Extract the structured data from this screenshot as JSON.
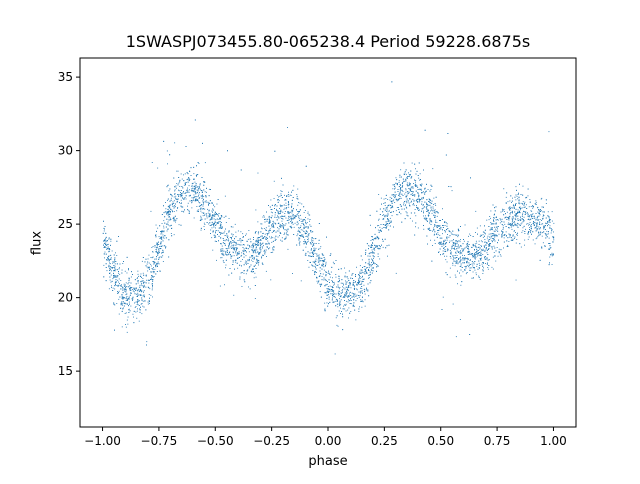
{
  "chart_data": {
    "type": "scatter",
    "title": "1SWASPJ073455.80-065238.4 Period 59228.6875s",
    "xlabel": "phase",
    "ylabel": "flux",
    "xlim": [
      -1.1,
      1.1
    ],
    "ylim": [
      11.2,
      36.3
    ],
    "xticks": [
      -1.0,
      -0.75,
      -0.5,
      -0.25,
      0.0,
      0.25,
      0.5,
      0.75,
      1.0
    ],
    "xtick_labels": [
      "−1.00",
      "−0.75",
      "−0.50",
      "−0.25",
      "0.00",
      "0.25",
      "0.50",
      "0.75",
      "1.00"
    ],
    "yticks": [
      15,
      20,
      25,
      30,
      35
    ],
    "ytick_labels": [
      "15",
      "20",
      "25",
      "30",
      "35"
    ],
    "grid": false,
    "legend": "none",
    "marker_color": "#1f77b4",
    "series": [
      {
        "phase_profile": {
          "x": [
            -1.0,
            -0.95,
            -0.9,
            -0.85,
            -0.8,
            -0.75,
            -0.7,
            -0.65,
            -0.6,
            -0.55,
            -0.5,
            -0.45,
            -0.4,
            -0.35,
            -0.3,
            -0.25,
            -0.2,
            -0.15,
            -0.1,
            -0.05,
            0.0,
            0.05,
            0.1,
            0.15,
            0.2,
            0.25,
            0.3,
            0.35,
            0.4,
            0.45,
            0.5,
            0.55,
            0.6,
            0.65,
            0.7,
            0.75,
            0.8,
            0.85,
            0.9,
            0.95,
            1.0
          ],
          "y": [
            23.8,
            21.5,
            20.2,
            20.1,
            21.0,
            23.5,
            26.0,
            27.2,
            27.4,
            26.5,
            24.8,
            23.5,
            23.0,
            22.8,
            23.5,
            24.8,
            25.6,
            25.5,
            24.5,
            22.5,
            21.0,
            20.2,
            20.2,
            21.0,
            23.0,
            25.5,
            27.0,
            27.4,
            27.0,
            25.8,
            24.3,
            23.2,
            22.8,
            22.9,
            23.5,
            24.5,
            25.3,
            25.6,
            25.5,
            25.0,
            24.0
          ]
        },
        "scatter_sigma": 0.85,
        "n_points": 6000
      }
    ]
  }
}
